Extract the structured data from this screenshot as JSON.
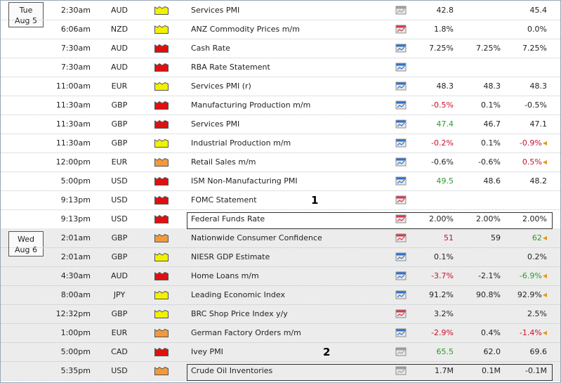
{
  "days": [
    {
      "weekday": "Tue",
      "date": "Aug 5",
      "events": [
        {
          "time": "2:30am",
          "currency": "AUD",
          "impact": "yellow",
          "event": "Services PMI",
          "graph": "gray",
          "actual": "42.8",
          "actual_color": "neutral",
          "forecast": "",
          "previous": "45.4",
          "previous_color": "neutral",
          "revised": false
        },
        {
          "time": "6:06am",
          "currency": "NZD",
          "impact": "yellow",
          "event": "ANZ Commodity Prices m/m",
          "graph": "red",
          "actual": "1.8%",
          "actual_color": "neutral",
          "forecast": "",
          "previous": "0.0%",
          "previous_color": "neutral",
          "revised": false
        },
        {
          "time": "7:30am",
          "currency": "AUD",
          "impact": "red",
          "event": "Cash Rate",
          "graph": "blue",
          "actual": "7.25%",
          "actual_color": "neutral",
          "forecast": "7.25%",
          "previous": "7.25%",
          "previous_color": "neutral",
          "revised": false
        },
        {
          "time": "7:30am",
          "currency": "AUD",
          "impact": "red",
          "event": "RBA Rate Statement",
          "graph": "blue",
          "actual": "",
          "actual_color": "neutral",
          "forecast": "",
          "previous": "",
          "previous_color": "neutral",
          "revised": false
        },
        {
          "time": "11:00am",
          "currency": "EUR",
          "impact": "yellow",
          "event": "Services PMI (r)",
          "graph": "blue",
          "actual": "48.3",
          "actual_color": "neutral",
          "forecast": "48.3",
          "previous": "48.3",
          "previous_color": "neutral",
          "revised": false
        },
        {
          "time": "11:30am",
          "currency": "GBP",
          "impact": "red",
          "event": "Manufacturing Production m/m",
          "graph": "blue",
          "actual": "-0.5%",
          "actual_color": "neg",
          "forecast": "0.1%",
          "previous": "-0.5%",
          "previous_color": "neutral",
          "revised": false
        },
        {
          "time": "11:30am",
          "currency": "GBP",
          "impact": "red",
          "event": "Services PMI",
          "graph": "blue",
          "actual": "47.4",
          "actual_color": "pos",
          "forecast": "46.7",
          "previous": "47.1",
          "previous_color": "neutral",
          "revised": false
        },
        {
          "time": "11:30am",
          "currency": "GBP",
          "impact": "yellow",
          "event": "Industrial Production m/m",
          "graph": "blue",
          "actual": "-0.2%",
          "actual_color": "neg",
          "forecast": "0.1%",
          "previous": "-0.9%",
          "previous_color": "neg",
          "revised": true
        },
        {
          "time": "12:00pm",
          "currency": "EUR",
          "impact": "orange",
          "event": "Retail Sales m/m",
          "graph": "blue",
          "actual": "-0.6%",
          "actual_color": "neutral",
          "forecast": "-0.6%",
          "previous": "0.5%",
          "previous_color": "neg",
          "revised": true
        },
        {
          "time": "5:00pm",
          "currency": "USD",
          "impact": "red",
          "event": "ISM Non-Manufacturing PMI",
          "graph": "blue",
          "actual": "49.5",
          "actual_color": "pos",
          "forecast": "48.6",
          "previous": "48.2",
          "previous_color": "neutral",
          "revised": false
        },
        {
          "time": "9:13pm",
          "currency": "USD",
          "impact": "red",
          "event": "FOMC Statement",
          "graph": "red",
          "actual": "",
          "actual_color": "neutral",
          "forecast": "",
          "previous": "",
          "previous_color": "neutral",
          "revised": false
        },
        {
          "time": "9:13pm",
          "currency": "USD",
          "impact": "red",
          "event": "Federal Funds Rate",
          "graph": "red",
          "actual": "2.00%",
          "actual_color": "neutral",
          "forecast": "2.00%",
          "previous": "2.00%",
          "previous_color": "neutral",
          "revised": false
        }
      ]
    },
    {
      "weekday": "Wed",
      "date": "Aug 6",
      "events": [
        {
          "time": "2:01am",
          "currency": "GBP",
          "impact": "orange",
          "event": "Nationwide Consumer Confidence",
          "graph": "red",
          "actual": "51",
          "actual_color": "neg",
          "forecast": "59",
          "previous": "62",
          "previous_color": "pos",
          "revised": true
        },
        {
          "time": "2:01am",
          "currency": "GBP",
          "impact": "yellow",
          "event": "NIESR GDP Estimate",
          "graph": "blue",
          "actual": "0.1%",
          "actual_color": "neutral",
          "forecast": "",
          "previous": "0.2%",
          "previous_color": "neutral",
          "revised": false
        },
        {
          "time": "4:30am",
          "currency": "AUD",
          "impact": "red",
          "event": "Home Loans m/m",
          "graph": "blue",
          "actual": "-3.7%",
          "actual_color": "neg",
          "forecast": "-2.1%",
          "previous": "-6.9%",
          "previous_color": "pos",
          "revised": true
        },
        {
          "time": "8:00am",
          "currency": "JPY",
          "impact": "yellow",
          "event": "Leading Economic Index",
          "graph": "blue",
          "actual": "91.2%",
          "actual_color": "neutral",
          "forecast": "90.8%",
          "previous": "92.9%",
          "previous_color": "neutral",
          "revised": true
        },
        {
          "time": "12:32pm",
          "currency": "GBP",
          "impact": "yellow",
          "event": "BRC Shop Price Index y/y",
          "graph": "red",
          "actual": "3.2%",
          "actual_color": "neutral",
          "forecast": "",
          "previous": "2.5%",
          "previous_color": "neutral",
          "revised": false
        },
        {
          "time": "1:00pm",
          "currency": "EUR",
          "impact": "orange",
          "event": "German Factory Orders m/m",
          "graph": "blue",
          "actual": "-2.9%",
          "actual_color": "neg",
          "forecast": "0.4%",
          "previous": "-1.4%",
          "previous_color": "neg",
          "revised": true
        },
        {
          "time": "5:00pm",
          "currency": "CAD",
          "impact": "red",
          "event": "Ivey PMI",
          "graph": "gray",
          "actual": "65.5",
          "actual_color": "pos",
          "forecast": "62.0",
          "previous": "69.6",
          "previous_color": "neutral",
          "revised": false
        },
        {
          "time": "5:35pm",
          "currency": "USD",
          "impact": "orange",
          "event": "Crude Oil Inventories",
          "graph": "gray",
          "actual": "1.7M",
          "actual_color": "neutral",
          "forecast": "0.1M",
          "previous": "-0.1M",
          "previous_color": "neutral",
          "revised": false
        }
      ]
    }
  ],
  "annotations": [
    {
      "label": "1"
    },
    {
      "label": "2"
    }
  ],
  "colors": {
    "impact_yellow": "#f2f200",
    "impact_orange": "#f29a3a",
    "impact_red": "#e01010",
    "positive": "#2b9a2b",
    "negative": "#c8102e",
    "alt_day_bg": "#ececec"
  },
  "icons": {
    "impact": "folder-impact-icon",
    "graph": "chart-graph-icon",
    "revised": "triangle-left-icon"
  }
}
